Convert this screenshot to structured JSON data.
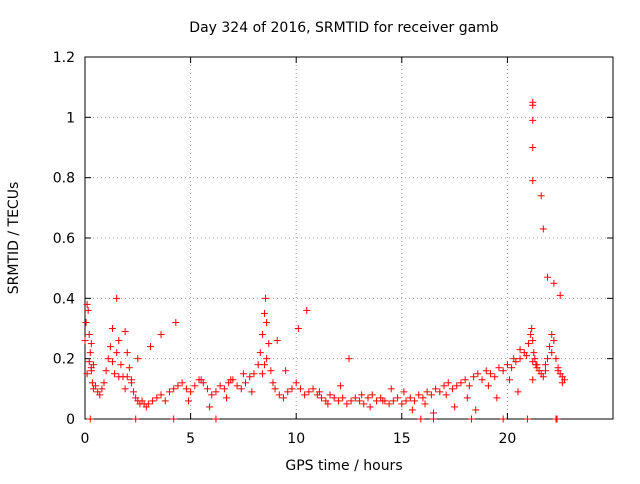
{
  "chart_data": {
    "type": "scatter",
    "title": "Day 324 of 2016, SRMTID for receiver gamb",
    "xlabel": "GPS time / hours",
    "ylabel": "SRMTID / TECUs",
    "xlim": [
      0,
      25
    ],
    "ylim": [
      0,
      1.2
    ],
    "xticks": [
      0,
      5,
      10,
      15,
      20
    ],
    "xtick_labels": [
      "0",
      "5",
      "10",
      "15",
      "20"
    ],
    "yticks": [
      0,
      0.2,
      0.4,
      0.6,
      0.8,
      1.0,
      1.2
    ],
    "ytick_labels": [
      "0",
      "0.2",
      "0.4",
      "0.6",
      "0.8",
      "1",
      "1.2"
    ],
    "grid": true,
    "marker": "+",
    "colors": {
      "series": "#ff0000",
      "grid": "#a0a0a0",
      "axis": "#000000"
    },
    "series": [
      {
        "name": "SRMTID",
        "marker": "+",
        "color": "#ff0000",
        "x": [
          0.05,
          0.1,
          0.15,
          0.2,
          0.25,
          0.3,
          0.35,
          0.4,
          0.5,
          0.6,
          0.7,
          0.8,
          0.9,
          1.0,
          1.1,
          1.2,
          1.3,
          1.4,
          1.5,
          1.6,
          1.7,
          1.8,
          1.9,
          2.0,
          2.1,
          2.2,
          2.3,
          2.4,
          2.5,
          2.6,
          2.7,
          2.8,
          2.9,
          3.0,
          3.2,
          3.4,
          3.6,
          3.8,
          4.0,
          4.2,
          4.4,
          4.6,
          4.8,
          5.0,
          5.2,
          5.4,
          5.6,
          5.8,
          6.0,
          6.2,
          6.4,
          6.6,
          6.8,
          7.0,
          7.2,
          7.4,
          7.6,
          7.8,
          8.0,
          8.2,
          8.3,
          8.4,
          8.5,
          8.55,
          8.6,
          8.7,
          8.8,
          8.9,
          9.0,
          9.2,
          9.4,
          9.6,
          9.8,
          10.0,
          10.2,
          10.4,
          10.6,
          10.8,
          11.0,
          11.2,
          11.4,
          11.6,
          11.8,
          12.0,
          12.2,
          12.4,
          12.6,
          12.8,
          13.0,
          13.2,
          13.4,
          13.6,
          13.8,
          14.0,
          14.2,
          14.4,
          14.6,
          14.8,
          15.0,
          15.2,
          15.4,
          15.6,
          15.8,
          16.0,
          16.2,
          16.4,
          16.6,
          16.8,
          17.0,
          17.2,
          17.4,
          17.6,
          17.8,
          18.0,
          18.2,
          18.4,
          18.6,
          18.8,
          19.0,
          19.2,
          19.4,
          19.6,
          19.8,
          20.0,
          20.2,
          20.4,
          20.6,
          20.8,
          21.0,
          21.1,
          21.15,
          21.2,
          21.25,
          21.3,
          21.35,
          21.4,
          21.5,
          21.6,
          21.7,
          21.8,
          21.9,
          22.0,
          22.1,
          22.2,
          22.3,
          22.4,
          22.5,
          22.6,
          22.7,
          0.1,
          0.3,
          1.5,
          2.0,
          2.5,
          4.3,
          5.5,
          6.7,
          7.5,
          8.5,
          9.5,
          10.5,
          11.5,
          12.5,
          13.5,
          14.5,
          15.5,
          16.5,
          17.5,
          18.5,
          19.5,
          20.5,
          21.2,
          21.2,
          21.2,
          21.2,
          21.2,
          21.2,
          21.2,
          21.6,
          21.7,
          21.9,
          22.2,
          22.5,
          0.0,
          0.2,
          0.3,
          0.4,
          1.3,
          1.6,
          1.9,
          2.2,
          3.1,
          3.6,
          4.9,
          5.9,
          6.9,
          7.9,
          8.4,
          8.6,
          9.1,
          10.1,
          11.1,
          12.1,
          13.1,
          14.1,
          15.1,
          16.1,
          17.1,
          18.1,
          19.1,
          20.1,
          20.3,
          20.6,
          20.9,
          21.4,
          21.8,
          22.1,
          22.4,
          22.6
        ],
        "y": [
          0.32,
          0.38,
          0.36,
          0.28,
          0.22,
          0.16,
          0.12,
          0.1,
          0.11,
          0.09,
          0.08,
          0.1,
          0.12,
          0.16,
          0.2,
          0.24,
          0.19,
          0.15,
          0.22,
          0.26,
          0.18,
          0.14,
          0.29,
          0.22,
          0.17,
          0.12,
          0.09,
          0.07,
          0.06,
          0.05,
          0.06,
          0.05,
          0.04,
          0.05,
          0.06,
          0.07,
          0.08,
          0.06,
          0.09,
          0.1,
          0.11,
          0.12,
          0.1,
          0.09,
          0.11,
          0.13,
          0.12,
          0.1,
          0.08,
          0.09,
          0.11,
          0.1,
          0.12,
          0.13,
          0.11,
          0.1,
          0.12,
          0.14,
          0.15,
          0.18,
          0.22,
          0.28,
          0.35,
          0.4,
          0.32,
          0.25,
          0.16,
          0.12,
          0.1,
          0.08,
          0.07,
          0.09,
          0.1,
          0.12,
          0.1,
          0.08,
          0.09,
          0.1,
          0.08,
          0.07,
          0.06,
          0.08,
          0.07,
          0.06,
          0.07,
          0.05,
          0.06,
          0.07,
          0.06,
          0.05,
          0.07,
          0.08,
          0.06,
          0.07,
          0.06,
          0.05,
          0.06,
          0.07,
          0.05,
          0.06,
          0.07,
          0.06,
          0.08,
          0.07,
          0.09,
          0.08,
          0.1,
          0.09,
          0.11,
          0.12,
          0.1,
          0.11,
          0.12,
          0.13,
          0.11,
          0.14,
          0.15,
          0.13,
          0.16,
          0.15,
          0.14,
          0.17,
          0.16,
          0.18,
          0.17,
          0.19,
          0.2,
          0.22,
          0.25,
          0.28,
          0.3,
          0.26,
          0.22,
          0.2,
          0.18,
          0.17,
          0.16,
          0.15,
          0.14,
          0.18,
          0.2,
          0.24,
          0.28,
          0.26,
          0.2,
          0.16,
          0.15,
          0.14,
          0.13,
          0.15,
          0.17,
          0.4,
          0.14,
          0.2,
          0.32,
          0.13,
          0.07,
          0.15,
          0.18,
          0.16,
          0.36,
          0.05,
          0.2,
          0.04,
          0.1,
          0.03,
          0.02,
          0.04,
          0.03,
          0.07,
          0.09,
          0.13,
          0.19,
          1.05,
          1.04,
          0.99,
          0.9,
          0.79,
          0.74,
          0.63,
          0.47,
          0.45,
          0.41,
          0.26,
          0.19,
          0.25,
          0.18,
          0.3,
          0.14,
          0.1,
          0.13,
          0.24,
          0.28,
          0.06,
          0.04,
          0.13,
          0.09,
          0.15,
          0.2,
          0.26,
          0.3,
          0.09,
          0.11,
          0.08,
          0.06,
          0.09,
          0.05,
          0.08,
          0.07,
          0.11,
          0.13,
          0.2,
          0.23,
          0.21,
          0.18,
          0.16,
          0.22,
          0.17,
          0.12
        ],
        "x_extra_note": "",
        "zero_x": [
          0.25,
          2.4,
          4.2,
          6.2,
          15.9,
          16.5,
          18.3,
          19.8,
          20.95,
          22.3,
          22.35
        ],
        "zero_y": [
          0,
          0,
          0,
          0,
          0,
          0,
          0,
          0,
          0,
          0,
          0
        ]
      }
    ]
  }
}
